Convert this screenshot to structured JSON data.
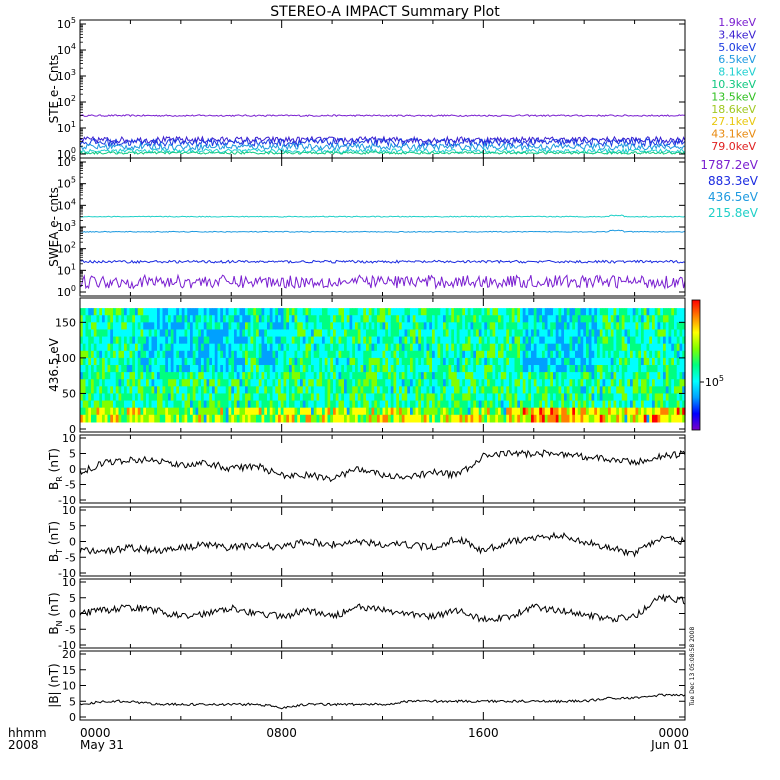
{
  "title": "STEREO-A IMPACT Summary Plot",
  "side_note": "Tue Dec 13 05:08:58 2008",
  "time_axis": {
    "row_labels": [
      "hhmm",
      "2008"
    ],
    "ticks": [
      {
        "hour": 0,
        "top": "0000",
        "bottom": "May 31"
      },
      {
        "hour": 8,
        "top": "0800",
        "bottom": ""
      },
      {
        "hour": 16,
        "top": "1600",
        "bottom": ""
      },
      {
        "hour": 24,
        "top": "0000",
        "bottom": "Jun 01"
      }
    ],
    "xlim_hours": [
      0,
      24
    ]
  },
  "ste_legend": [
    {
      "label": "1.9keV",
      "color": "#7a1fd0"
    },
    {
      "label": "3.4keV",
      "color": "#3a1fd0"
    },
    {
      "label": "5.0keV",
      "color": "#1a3ae0"
    },
    {
      "label": "6.5keV",
      "color": "#1e9ae0"
    },
    {
      "label": "8.1keV",
      "color": "#20d0d0"
    },
    {
      "label": "10.3keV",
      "color": "#10c880"
    },
    {
      "label": "13.5keV",
      "color": "#30c020"
    },
    {
      "label": "18.6keV",
      "color": "#a0c820"
    },
    {
      "label": "27.1keV",
      "color": "#e8c810"
    },
    {
      "label": "43.1keV",
      "color": "#e88a10"
    },
    {
      "label": "79.0keV",
      "color": "#e02020"
    }
  ],
  "swea_legend": [
    {
      "label": "1787.2eV",
      "color": "#7a1fd0"
    },
    {
      "label": "883.3eV",
      "color": "#1a2ae0"
    },
    {
      "label": "436.5eV",
      "color": "#1e9ae0"
    },
    {
      "label": "215.8eV",
      "color": "#20d0c8"
    }
  ],
  "colorbar": {
    "tick_label": "10^5",
    "colors": [
      "#7a00c8",
      "#0000ff",
      "#00a0ff",
      "#00ffff",
      "#00ff80",
      "#80ff00",
      "#ffff00",
      "#ff8000",
      "#ff0000"
    ]
  },
  "chart_data": [
    {
      "type": "line",
      "panel": "ste",
      "ylabel": "STE e- Cnts",
      "yscale": "log",
      "ylim": [
        1,
        100000
      ],
      "yticks": [
        "10^0",
        "10^1",
        "10^2",
        "10^3",
        "10^4",
        "10^5"
      ],
      "series": [
        {
          "name": "1.9keV",
          "level": 30,
          "spread": 0.03
        },
        {
          "name": "3.4keV",
          "level": 3.5,
          "spread": 0.12
        },
        {
          "name": "5.0keV",
          "level": 2.8,
          "spread": 0.15
        },
        {
          "name": "6.5keV",
          "level": 1.9,
          "spread": 0.12
        },
        {
          "name": "8.1keV",
          "level": 1.3,
          "spread": 0.08
        },
        {
          "name": "10.3keV",
          "level": 1.1,
          "spread": 0.05
        }
      ]
    },
    {
      "type": "line",
      "panel": "swea",
      "ylabel": "SWEA e- cnts",
      "yscale": "log",
      "ylim": [
        1,
        1000000
      ],
      "yticks": [
        "10^0",
        "10^1",
        "10^2",
        "10^3",
        "10^4",
        "10^5",
        "10^6"
      ],
      "series": [
        {
          "name": "215.8eV",
          "level": 3000,
          "spread": 0.02
        },
        {
          "name": "436.5eV",
          "level": 600,
          "spread": 0.02
        },
        {
          "name": "883.3eV",
          "level": 25,
          "spread": 0.06
        },
        {
          "name": "1787.2eV",
          "level": 3,
          "spread": 0.3
        }
      ]
    },
    {
      "type": "heatmap",
      "panel": "pad",
      "ylabel": "436.5 eV",
      "ylim": [
        0,
        180
      ],
      "yticks": [
        0,
        50,
        100,
        150
      ],
      "note": "pitch-angle distribution, colour = counts (log), upper panel region 10-170"
    },
    {
      "type": "line",
      "panel": "br",
      "ylabel": "B_R (nT)",
      "ylim": [
        -10,
        10
      ],
      "yticks": [
        -10,
        -5,
        0,
        5,
        10
      ],
      "x_hours": [
        0,
        1,
        2,
        3,
        4,
        5,
        6,
        7,
        8,
        9,
        10,
        11,
        12,
        13,
        14,
        15,
        16,
        17,
        18,
        19,
        20,
        21,
        22,
        23,
        24
      ],
      "values": [
        -1,
        2,
        3,
        3,
        1,
        2,
        0,
        1,
        -2,
        -2,
        -3,
        0,
        -2,
        -3,
        -1,
        -2,
        4,
        5,
        5,
        5,
        4,
        3,
        2,
        4,
        5
      ]
    },
    {
      "type": "line",
      "panel": "bt",
      "ylabel": "B_T (nT)",
      "ylim": [
        -10,
        10
      ],
      "yticks": [
        -10,
        -5,
        0,
        5,
        10
      ],
      "x_hours": [
        0,
        1,
        2,
        3,
        4,
        5,
        6,
        7,
        8,
        9,
        10,
        11,
        12,
        13,
        14,
        15,
        16,
        17,
        18,
        19,
        20,
        21,
        22,
        23,
        24
      ],
      "values": [
        -3,
        -3,
        -2,
        -3,
        -2,
        -1,
        -2,
        -1,
        -2,
        0,
        -1,
        0,
        -1,
        -1,
        -2,
        1,
        -3,
        0,
        1,
        2,
        0,
        -2,
        -4,
        1,
        0
      ]
    },
    {
      "type": "line",
      "panel": "bn",
      "ylabel": "B_N (nT)",
      "ylim": [
        -10,
        10
      ],
      "yticks": [
        -10,
        -5,
        0,
        5,
        10
      ],
      "x_hours": [
        0,
        1,
        2,
        3,
        4,
        5,
        6,
        7,
        8,
        9,
        10,
        11,
        12,
        13,
        14,
        15,
        16,
        17,
        18,
        19,
        20,
        21,
        22,
        23,
        24
      ],
      "values": [
        0,
        1,
        2,
        1,
        -1,
        0,
        2,
        0,
        -1,
        1,
        -1,
        2,
        1,
        0,
        -1,
        1,
        -2,
        -1,
        2,
        1,
        0,
        -2,
        -1,
        5,
        4
      ]
    },
    {
      "type": "line",
      "panel": "bmag",
      "ylabel": "|B| (nT)",
      "ylim": [
        0,
        20
      ],
      "yticks": [
        0,
        5,
        10,
        15,
        20
      ],
      "x_hours": [
        0,
        1,
        2,
        3,
        4,
        5,
        6,
        7,
        8,
        9,
        10,
        11,
        12,
        13,
        14,
        15,
        16,
        17,
        18,
        19,
        20,
        21,
        22,
        23,
        24
      ],
      "values": [
        4,
        5,
        5,
        4,
        4,
        4,
        4,
        4,
        3,
        4,
        4,
        4,
        4,
        5,
        5,
        5,
        5,
        5,
        5,
        5,
        5,
        6,
        6,
        7,
        7
      ]
    }
  ]
}
